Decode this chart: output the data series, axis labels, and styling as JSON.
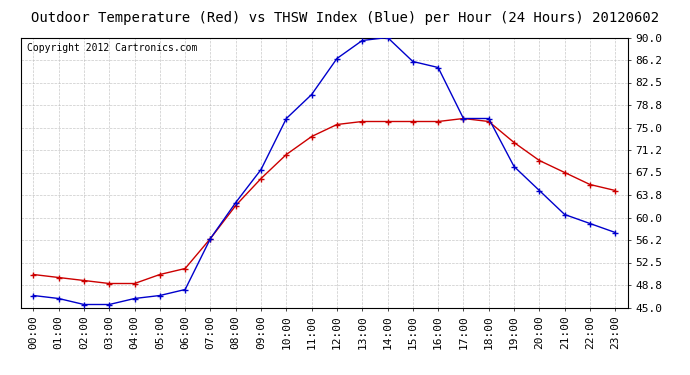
{
  "title": "Outdoor Temperature (Red) vs THSW Index (Blue) per Hour (24 Hours) 20120602",
  "copyright": "Copyright 2012 Cartronics.com",
  "hours": [
    "00:00",
    "01:00",
    "02:00",
    "03:00",
    "04:00",
    "05:00",
    "06:00",
    "07:00",
    "08:00",
    "09:00",
    "10:00",
    "11:00",
    "12:00",
    "13:00",
    "14:00",
    "15:00",
    "16:00",
    "17:00",
    "18:00",
    "19:00",
    "20:00",
    "21:00",
    "22:00",
    "23:00"
  ],
  "red_temp": [
    50.5,
    50.0,
    49.5,
    49.0,
    49.0,
    50.5,
    51.5,
    56.5,
    62.0,
    66.5,
    70.5,
    73.5,
    75.5,
    76.0,
    76.0,
    76.0,
    76.0,
    76.5,
    76.0,
    72.5,
    69.5,
    67.5,
    65.5,
    64.5
  ],
  "blue_thsw": [
    47.0,
    46.5,
    45.5,
    45.5,
    46.5,
    47.0,
    48.0,
    56.5,
    62.5,
    68.0,
    76.5,
    80.5,
    86.5,
    89.5,
    90.0,
    86.0,
    85.0,
    76.5,
    76.5,
    68.5,
    64.5,
    60.5,
    59.0,
    57.5
  ],
  "ylim": [
    45.0,
    90.0
  ],
  "yticks": [
    45.0,
    48.8,
    52.5,
    56.2,
    60.0,
    63.8,
    67.5,
    71.2,
    75.0,
    78.8,
    82.5,
    86.2,
    90.0
  ],
  "background_color": "#ffffff",
  "plot_bg_color": "#ffffff",
  "grid_color": "#bbbbbb",
  "red_color": "#cc0000",
  "blue_color": "#0000cc",
  "title_fontsize": 10,
  "copyright_fontsize": 7,
  "tick_fontsize": 8
}
